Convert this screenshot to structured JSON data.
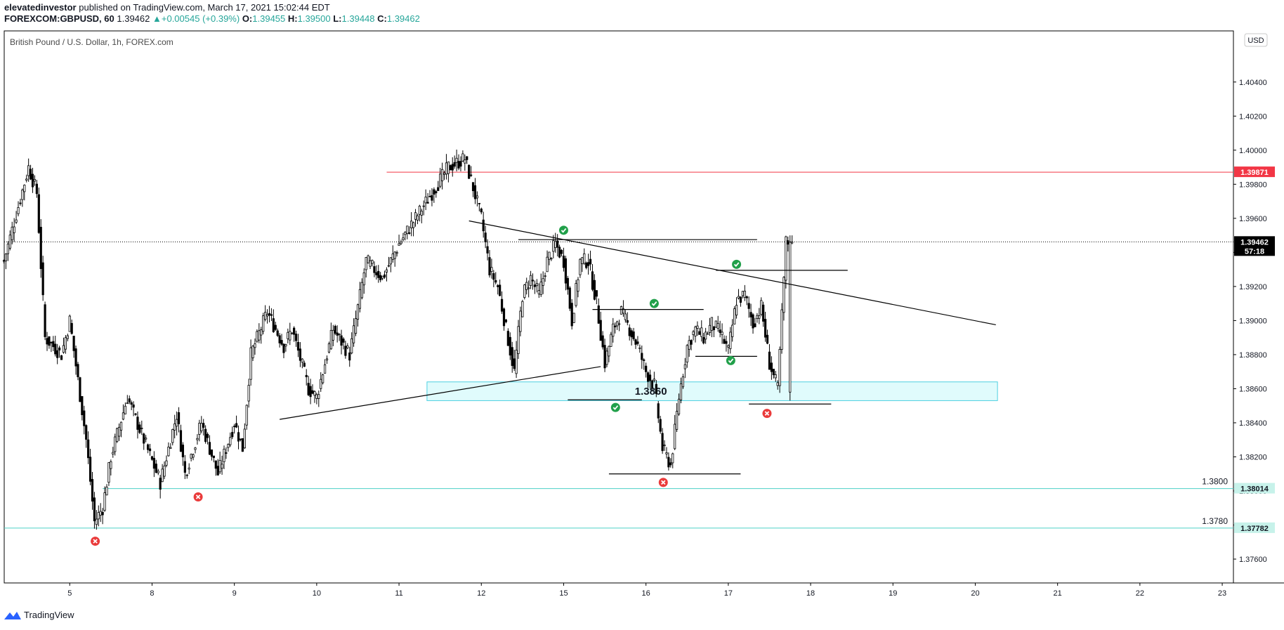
{
  "header": {
    "author": "elevatedinvestor",
    "published": "published on TradingView.com, March 17, 2021 15:02:44 EDT",
    "symbol": "FOREXCOM:GBPUSD, 60",
    "last": "1.39462",
    "change": "+0.00545 (+0.39%)",
    "o_label": "O:",
    "o_value": "1.39455",
    "h_label": "H:",
    "h_value": "1.39500",
    "l_label": "L:",
    "l_value": "1.39448",
    "c_label": "C:",
    "c_value": "1.39462"
  },
  "chart_title": "British Pound / U.S. Dollar, 1h, FOREX.com",
  "currency_badge": "USD",
  "footer": {
    "brand": "TradingView"
  },
  "colors": {
    "candle": "#000000",
    "resistance": "#f23645",
    "support": "#4dd0c6",
    "zone_fill": "#e0fbfc",
    "zone_border": "#4dd0e1",
    "check": "#21a04a",
    "cross": "#ea3b3b"
  },
  "chart_data": {
    "type": "candlestick",
    "title": "British Pound / U.S. Dollar, 1h, FOREX.com",
    "ylim": [
      1.3746,
      1.407
    ],
    "y_ticks": [
      "1.40400",
      "1.40200",
      "1.40000",
      "1.39800",
      "1.39600",
      "1.39400",
      "1.39200",
      "1.39000",
      "1.38800",
      "1.38600",
      "1.38400",
      "1.38200",
      "1.38000",
      "1.37800",
      "1.37600"
    ],
    "x_ticks": [
      {
        "label": "5",
        "i": 8
      },
      {
        "label": "8",
        "i": 18
      },
      {
        "label": "9",
        "i": 28
      },
      {
        "label": "10",
        "i": 38
      },
      {
        "label": "11",
        "i": 48
      },
      {
        "label": "12",
        "i": 58
      },
      {
        "label": "15",
        "i": 68
      },
      {
        "label": "16",
        "i": 78
      },
      {
        "label": "17",
        "i": 88
      },
      {
        "label": "18",
        "i": 98
      },
      {
        "label": "19",
        "i": 108
      },
      {
        "label": "20",
        "i": 118
      },
      {
        "label": "21",
        "i": 128
      },
      {
        "label": "22",
        "i": 138
      },
      {
        "label": "23",
        "i": 148
      }
    ],
    "price_path": [
      [
        0,
        1.3935
      ],
      [
        3,
        1.399
      ],
      [
        4,
        1.3975
      ],
      [
        5,
        1.389
      ],
      [
        7,
        1.388
      ],
      [
        8,
        1.39
      ],
      [
        10,
        1.383
      ],
      [
        11,
        1.3782
      ],
      [
        12,
        1.379
      ],
      [
        13,
        1.382
      ],
      [
        15,
        1.3855
      ],
      [
        17,
        1.383
      ],
      [
        19,
        1.3805
      ],
      [
        21,
        1.3845
      ],
      [
        22,
        1.381
      ],
      [
        24,
        1.384
      ],
      [
        26,
        1.381
      ],
      [
        28,
        1.384
      ],
      [
        29,
        1.3825
      ],
      [
        30,
        1.388
      ],
      [
        32,
        1.3905
      ],
      [
        34,
        1.3885
      ],
      [
        35,
        1.3895
      ],
      [
        37,
        1.386
      ],
      [
        38,
        1.3855
      ],
      [
        40,
        1.3895
      ],
      [
        42,
        1.388
      ],
      [
        44,
        1.3935
      ],
      [
        46,
        1.3925
      ],
      [
        48,
        1.3945
      ],
      [
        50,
        1.396
      ],
      [
        52,
        1.3975
      ],
      [
        54,
        1.399
      ],
      [
        56,
        1.3995
      ],
      [
        57,
        1.3978
      ],
      [
        58,
        1.396
      ],
      [
        59,
        1.393
      ],
      [
        60,
        1.392
      ],
      [
        61,
        1.3895
      ],
      [
        62,
        1.387
      ],
      [
        63,
        1.3915
      ],
      [
        64,
        1.3925
      ],
      [
        65,
        1.3915
      ],
      [
        66,
        1.3935
      ],
      [
        67,
        1.3945
      ],
      [
        68,
        1.3935
      ],
      [
        69,
        1.39
      ],
      [
        70,
        1.3935
      ],
      [
        71,
        1.3935
      ],
      [
        72,
        1.391
      ],
      [
        73,
        1.3875
      ],
      [
        74,
        1.3895
      ],
      [
        75,
        1.3905
      ],
      [
        76,
        1.3895
      ],
      [
        77,
        1.3885
      ],
      [
        78,
        1.387
      ],
      [
        79,
        1.3862
      ],
      [
        80,
        1.3825
      ],
      [
        81,
        1.3815
      ],
      [
        82,
        1.3855
      ],
      [
        83,
        1.3885
      ],
      [
        84,
        1.3895
      ],
      [
        85,
        1.389
      ],
      [
        86,
        1.3898
      ],
      [
        87,
        1.3893
      ],
      [
        88,
        1.3882
      ],
      [
        89,
        1.3912
      ],
      [
        90,
        1.3915
      ],
      [
        91,
        1.3898
      ],
      [
        92,
        1.3908
      ],
      [
        93,
        1.3875
      ],
      [
        94,
        1.386
      ],
      [
        95,
        1.3946
      ]
    ],
    "resistance_level": 1.39871,
    "last_price": 1.39462,
    "last_price_label": "1.39462",
    "countdown": "57:18",
    "levels": [
      {
        "value": 1.38014,
        "label": "1.3800",
        "badge": "1.38014"
      },
      {
        "value": 1.37782,
        "label": "1.3780",
        "badge": "1.37782"
      }
    ],
    "zone": {
      "from": 1.3853,
      "to": 1.3864,
      "label": "1.3860"
    },
    "lines": [
      {
        "kind": "trendline",
        "from": [
          56.5,
          1.39585
        ],
        "to": [
          120.5,
          1.38975
        ]
      },
      {
        "kind": "trendline",
        "from": [
          33.5,
          1.3842
        ],
        "to": [
          72.5,
          1.3873
        ]
      },
      {
        "kind": "hline",
        "y": 1.39475,
        "x": [
          62.5,
          91.5
        ]
      },
      {
        "kind": "hline",
        "y": 1.39295,
        "x": [
          86.5,
          102.5
        ]
      },
      {
        "kind": "hline",
        "y": 1.39065,
        "x": [
          71.5,
          85.0
        ]
      },
      {
        "kind": "hline",
        "y": 1.3879,
        "x": [
          84.0,
          91.5
        ]
      },
      {
        "kind": "hline",
        "y": 1.38535,
        "x": [
          68.5,
          77.5
        ]
      },
      {
        "kind": "hline",
        "y": 1.3851,
        "x": [
          90.5,
          100.5
        ]
      },
      {
        "kind": "hline",
        "y": 1.381,
        "x": [
          73.5,
          89.5
        ]
      }
    ],
    "markers": [
      {
        "type": "check",
        "i": 68.0,
        "y": 1.3953
      },
      {
        "type": "check",
        "i": 89.0,
        "y": 1.3933
      },
      {
        "type": "check",
        "i": 79.0,
        "y": 1.391
      },
      {
        "type": "check",
        "i": 88.3,
        "y": 1.38765
      },
      {
        "type": "check",
        "i": 74.3,
        "y": 1.3849
      },
      {
        "type": "cross",
        "i": 92.7,
        "y": 1.38455
      },
      {
        "type": "cross",
        "i": 80.1,
        "y": 1.3805
      },
      {
        "type": "cross",
        "i": 23.6,
        "y": 1.37965
      },
      {
        "type": "cross",
        "i": 11.1,
        "y": 1.37705
      }
    ]
  }
}
